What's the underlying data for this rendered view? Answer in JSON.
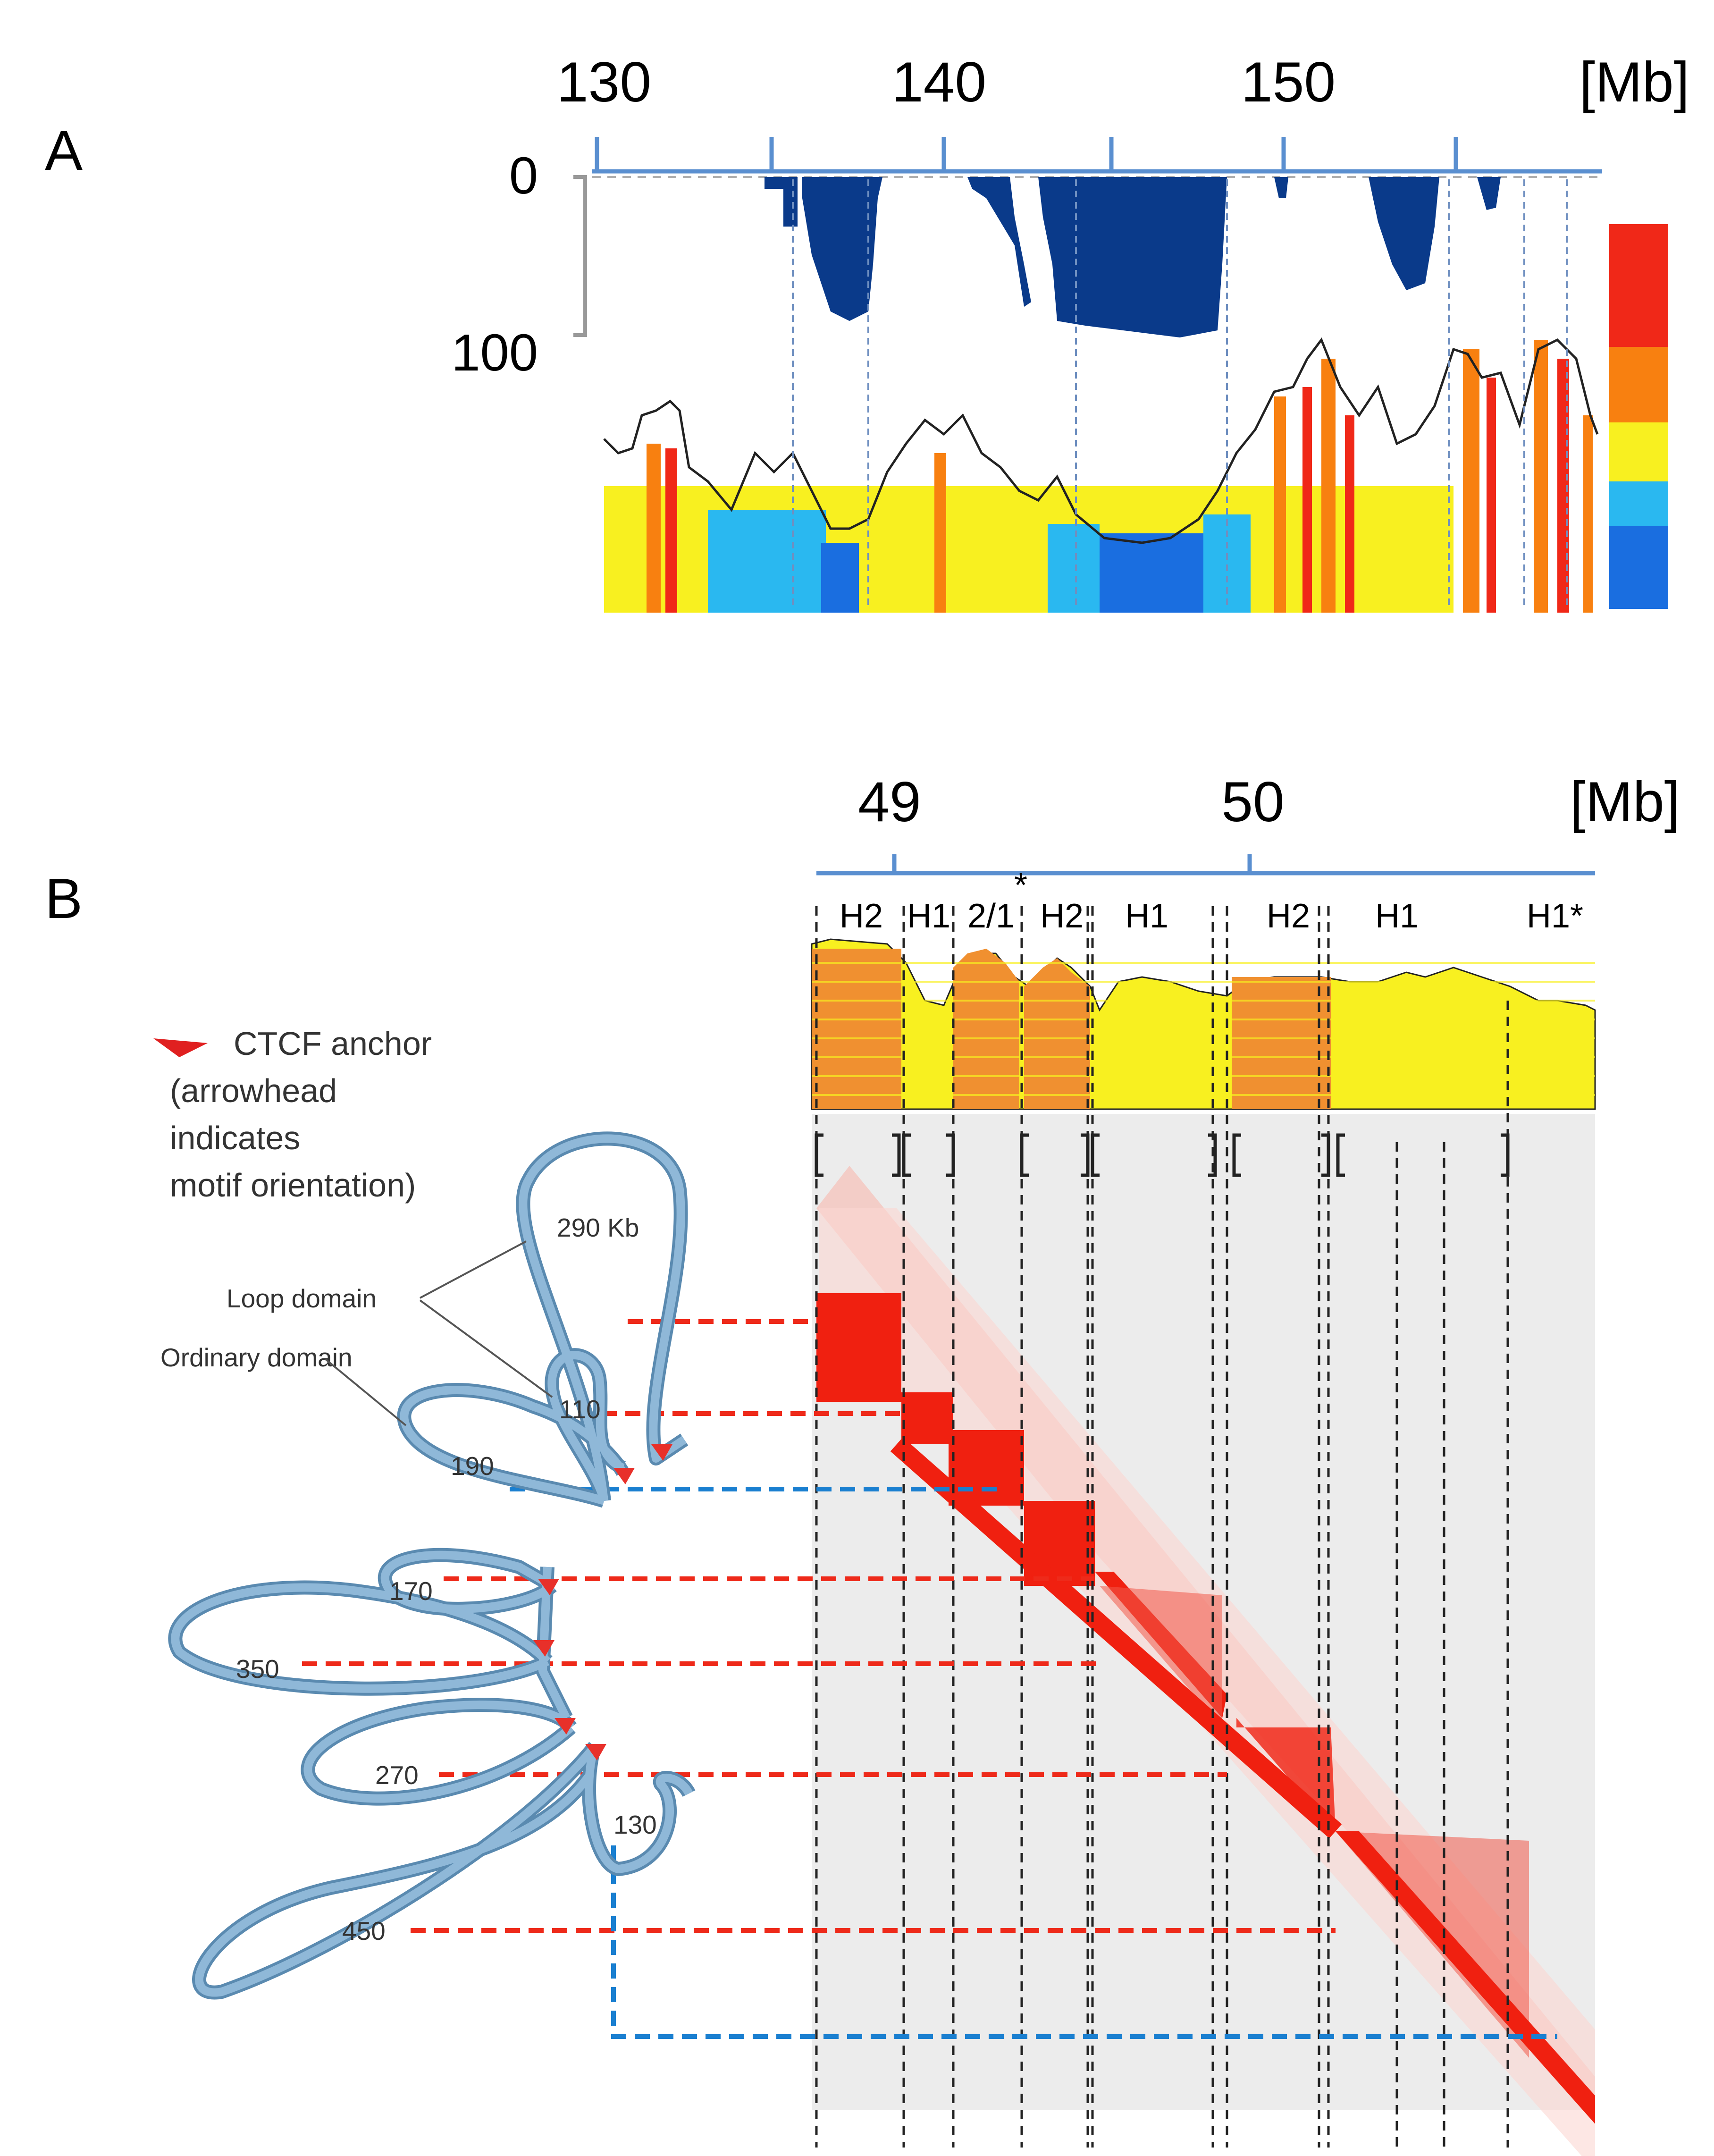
{
  "panelA": {
    "label": "A",
    "axis": {
      "ticks": [
        "130",
        "140",
        "150"
      ],
      "unit": "[Mb]"
    },
    "y_axis": {
      "top": "0",
      "bottom": "100"
    },
    "colors": {
      "deep_blue": "#0a3a8a",
      "blue": "#1a6ee0",
      "cyan": "#2ab8f0",
      "yellow": "#f8f020",
      "orange": "#f88010",
      "red": "#f02818",
      "axis": "#5a8fd0"
    }
  },
  "panelB": {
    "label": "B",
    "axis": {
      "ticks": [
        "49",
        "50"
      ],
      "unit": "[Mb]"
    },
    "haplotypes": [
      {
        "text": "H2",
        "color": "#e02020"
      },
      {
        "text": "H1",
        "color": "#000000"
      },
      {
        "text": "2/1",
        "color": "#e02020"
      },
      {
        "text": "*",
        "color": "#000000"
      },
      {
        "text": "H2",
        "color": "#e02020"
      },
      {
        "text": "H1",
        "color": "#000000"
      },
      {
        "text": "H2",
        "color": "#e02020"
      },
      {
        "text": "H1",
        "color": "#000000"
      },
      {
        "text": "H1*",
        "color": "#000000"
      }
    ],
    "legend": {
      "line1": "CTCF anchor",
      "line2": "(arrowhead",
      "line3": "indicates",
      "line4": "motif orientation)"
    },
    "loop_labels": {
      "size290": "290 Kb",
      "loop_domain": "Loop domain",
      "ordinary_domain": "Ordinary domain",
      "size110": "110",
      "size190": "190",
      "size170": "170",
      "size350": "350",
      "size270": "270",
      "size130": "130",
      "size450": "450"
    },
    "colors": {
      "loop": "#8fb8d8",
      "loop_dark": "#5a8ab0",
      "hic": "#f02010",
      "dash_red": "#ee2a1a",
      "dash_blue": "#1a7fd0",
      "bg": "#ececec"
    }
  }
}
